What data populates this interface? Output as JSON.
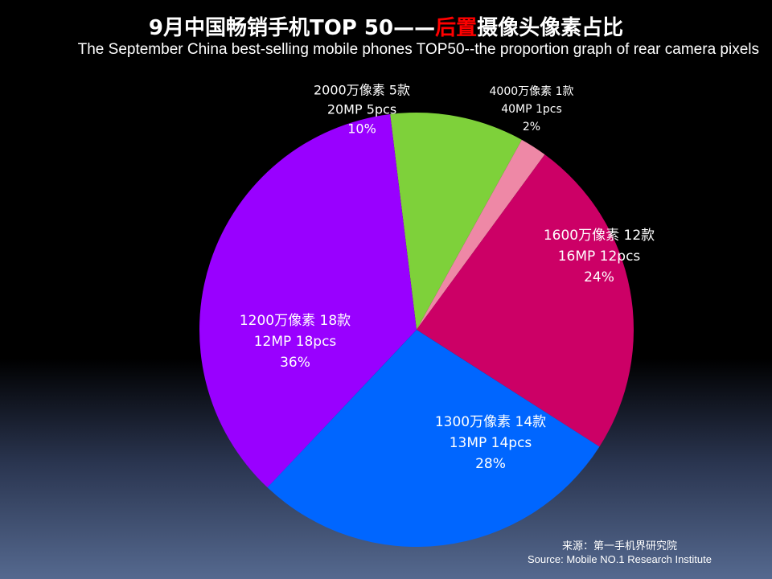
{
  "title": {
    "part1": "9月中国畅销手机TOP 50——",
    "highlight": "后置",
    "part2": "摄像头像素占比"
  },
  "subtitle": "The September China best-selling mobile phones TOP50--the proportion graph of rear camera pixels",
  "source": {
    "cn": "来源：第一手机界研究院",
    "en": "Source: Mobile NO.1 Research Institute"
  },
  "colors": {
    "accent_title": "#ff0000"
  },
  "chart_data": {
    "type": "pie",
    "categories": [
      "2000万像素",
      "4000万像素",
      "1600万像素",
      "1300万像素",
      "1200万像素"
    ],
    "values": [
      5,
      1,
      12,
      14,
      18
    ],
    "percent": [
      "10%",
      "2%",
      "24%",
      "28%",
      "36%"
    ],
    "labels": [
      [
        "2000万像素 5款",
        "20MP 5pcs",
        "10%"
      ],
      [
        "4000万像素 1款",
        "40MP 1pcs",
        "2%"
      ],
      [
        "1600万像素 12款",
        "16MP 12pcs",
        "24%"
      ],
      [
        "1300万像素 14款",
        "13MP 14pcs",
        "28%"
      ],
      [
        "1200万像素  18款",
        "12MP 18pcs",
        "36%"
      ]
    ],
    "colors": [
      "#7ed13a",
      "#ee88a6",
      "#cc0066",
      "#0066ff",
      "#9900ff"
    ],
    "legend": "none"
  }
}
